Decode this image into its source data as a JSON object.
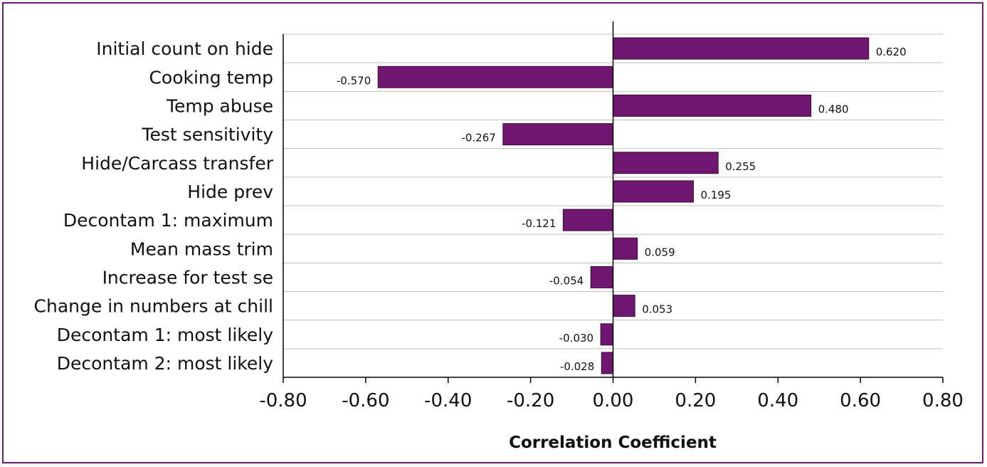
{
  "chart_data": {
    "type": "bar",
    "orientation": "horizontal",
    "categories": [
      "Initial count on hide",
      "Cooking temp",
      "Temp abuse",
      "Test sensitivity",
      "Hide/Carcass transfer",
      "Hide prev",
      "Decontam 1: maximum",
      "Mean mass trim",
      "Increase for test se",
      "Change in numbers at chill",
      "Decontam 1: most likely",
      "Decontam 2: most likely"
    ],
    "values": [
      0.62,
      -0.57,
      0.48,
      -0.267,
      0.255,
      0.195,
      -0.121,
      0.059,
      -0.054,
      0.053,
      -0.03,
      -0.028
    ],
    "value_labels": [
      "0.620",
      "-0.570",
      "0.480",
      "-0.267",
      "0.255",
      "0.195",
      "-0.121",
      "0.059",
      "-0.054",
      "0.053",
      "-0.030",
      "-0.028"
    ],
    "xlabel": "Correlation Coefficient",
    "ylabel": "",
    "xlim": [
      -0.8,
      0.8
    ],
    "xticks": [
      -0.8,
      -0.6,
      -0.4,
      -0.2,
      0.0,
      0.2,
      0.4,
      0.6,
      0.8
    ],
    "xtick_labels": [
      "-0.80",
      "-0.60",
      "-0.40",
      "-0.20",
      "0.00",
      "0.20",
      "0.40",
      "0.60",
      "0.80"
    ],
    "grid": "horizontal",
    "legend": "none",
    "colors": {
      "bar": "#6f1670",
      "frame": "#6b1f6b",
      "grid": "#bfbfbf",
      "axis": "#000000"
    }
  }
}
